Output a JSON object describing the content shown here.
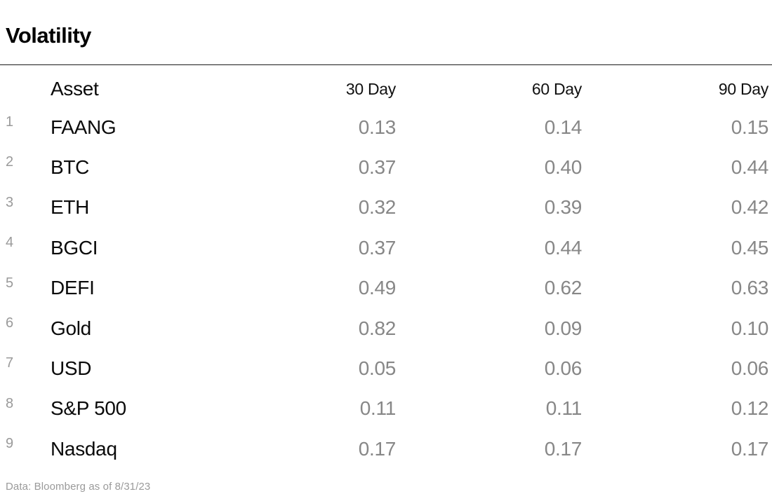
{
  "title": "Volatility",
  "table": {
    "columns": [
      "Asset",
      "30 Day",
      "60 Day",
      "90 Day"
    ],
    "rows": [
      {
        "num": "1",
        "asset": "FAANG",
        "d30": "0.13",
        "d60": "0.14",
        "d90": "0.15"
      },
      {
        "num": "2",
        "asset": "BTC",
        "d30": "0.37",
        "d60": "0.40",
        "d90": "0.44"
      },
      {
        "num": "3",
        "asset": "ETH",
        "d30": "0.32",
        "d60": "0.39",
        "d90": "0.42"
      },
      {
        "num": "4",
        "asset": "BGCI",
        "d30": "0.37",
        "d60": "0.44",
        "d90": "0.45"
      },
      {
        "num": "5",
        "asset": "DEFI",
        "d30": "0.49",
        "d60": "0.62",
        "d90": "0.63"
      },
      {
        "num": "6",
        "asset": "Gold",
        "d30": "0.82",
        "d60": "0.09",
        "d90": "0.10"
      },
      {
        "num": "7",
        "asset": "USD",
        "d30": "0.05",
        "d60": "0.06",
        "d90": "0.06"
      },
      {
        "num": "8",
        "asset": "S&P 500",
        "d30": "0.11",
        "d60": "0.11",
        "d90": "0.12"
      },
      {
        "num": "9",
        "asset": "Nasdaq",
        "d30": "0.17",
        "d60": "0.17",
        "d90": "0.17"
      }
    ]
  },
  "footer": "Data:  Bloomberg as of 8/31/23",
  "colors": {
    "text": "#000000",
    "muted_value": "#878787",
    "row_number": "#9a9a9a",
    "divider": "#1a1a1a"
  },
  "chart_data": {
    "type": "table",
    "title": "Volatility",
    "columns": [
      "Asset",
      "30 Day",
      "60 Day",
      "90 Day"
    ],
    "rows": [
      [
        "FAANG",
        0.13,
        0.14,
        0.15
      ],
      [
        "BTC",
        0.37,
        0.4,
        0.44
      ],
      [
        "ETH",
        0.32,
        0.39,
        0.42
      ],
      [
        "BGCI",
        0.37,
        0.44,
        0.45
      ],
      [
        "DEFI",
        0.49,
        0.62,
        0.63
      ],
      [
        "Gold",
        0.82,
        0.09,
        0.1
      ],
      [
        "USD",
        0.05,
        0.06,
        0.06
      ],
      [
        "S&P 500",
        0.11,
        0.11,
        0.12
      ],
      [
        "Nasdaq",
        0.17,
        0.17,
        0.17
      ]
    ],
    "note": "Data: Bloomberg as of 8/31/23"
  }
}
